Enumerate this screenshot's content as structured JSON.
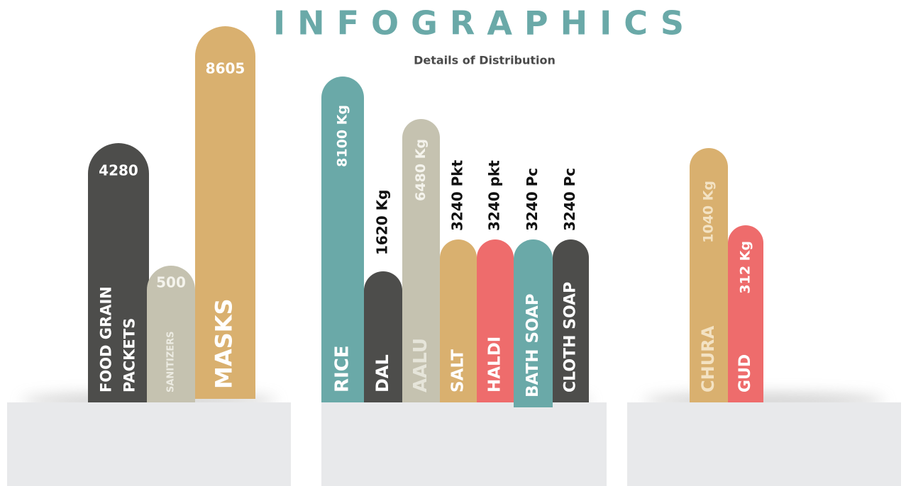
{
  "header": {
    "title": "INFOGRAPHICS",
    "subtitle": "Details of Distribution"
  },
  "groups": [
    {
      "items": [
        {
          "label": [
            "FOOD GRAIN",
            "PACKETS"
          ],
          "value": "4280"
        },
        {
          "label": [
            "SANITIZERS"
          ],
          "value": "500"
        },
        {
          "label": [
            "MASKS"
          ],
          "value": "8605"
        }
      ]
    },
    {
      "items": [
        {
          "label": [
            "RICE"
          ],
          "value": "8100 Kg"
        },
        {
          "label": [
            "DAL"
          ],
          "value": "1620 Kg"
        },
        {
          "label": [
            "AALU"
          ],
          "value": "6480 Kg"
        },
        {
          "label": [
            "SALT"
          ],
          "value": "3240 Pkt"
        },
        {
          "label": [
            "HALDI"
          ],
          "value": "3240 pkt"
        },
        {
          "label": [
            "BATH SOAP"
          ],
          "value": "3240 Pc"
        },
        {
          "label": [
            "CLOTH SOAP"
          ],
          "value": "3240 Pc"
        }
      ]
    },
    {
      "items": [
        {
          "label": [
            "CHURA"
          ],
          "value": "1040 Kg"
        },
        {
          "label": [
            "GUD"
          ],
          "value": "312 Kg"
        }
      ]
    }
  ]
}
